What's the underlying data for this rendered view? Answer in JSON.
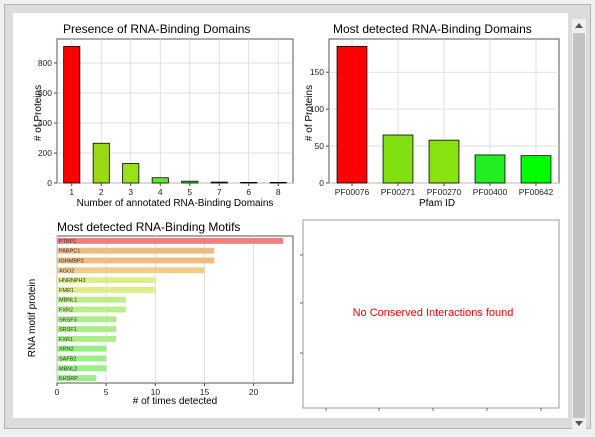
{
  "chart_data": [
    {
      "type": "bar",
      "title": "Presence of RNA-Binding Domains",
      "xlabel": "Number of annotated RNA-Binding Domains",
      "ylabel": "# of Proteins",
      "categories": [
        "1",
        "2",
        "3",
        "4",
        "5",
        "7",
        "6",
        "8"
      ],
      "values": [
        910,
        265,
        130,
        35,
        12,
        6,
        4,
        4
      ],
      "colors": [
        "#ff0000",
        "#99d911",
        "#9be11a",
        "#66e62a",
        "#33ee33",
        "#22ee22",
        "#00ff00",
        "#00ff00"
      ],
      "ylim": [
        0,
        960
      ],
      "yticks": [
        0,
        200,
        400,
        600,
        800
      ],
      "grid": true
    },
    {
      "type": "bar",
      "title": "Most detected RNA-Binding Domains",
      "xlabel": "Pfam ID",
      "ylabel": "# of Proteins",
      "categories": [
        "PF00076",
        "PF00271",
        "PF00270",
        "PF00400",
        "PF00642"
      ],
      "values": [
        185,
        65,
        58,
        38,
        37
      ],
      "colors": [
        "#ff0000",
        "#80e010",
        "#88e212",
        "#22ee22",
        "#00ff00"
      ],
      "ylim": [
        0,
        195
      ],
      "yticks": [
        0,
        50,
        100,
        150
      ],
      "grid": true
    },
    {
      "type": "bar",
      "orientation": "horizontal",
      "title": "Most detected RNA-Binding Motifs",
      "xlabel": "# of times detected",
      "ylabel": "RNA motif protein",
      "categories": [
        "PTBP1",
        "PABPC1",
        "IGHMBP2",
        "AGO2",
        "HNRNPH3",
        "FMR1",
        "MBNL1",
        "FXR2",
        "SRSF3",
        "SRSF1",
        "FXR1",
        "XRN2",
        "SAFB2",
        "MBNL2",
        "KHSRP"
      ],
      "values": [
        23,
        16,
        16,
        15,
        10,
        10,
        7,
        7,
        6,
        6,
        6,
        5,
        5,
        5,
        4
      ],
      "colors": [
        "#f08080",
        "#eebb80",
        "#eebb80",
        "#f0cc88",
        "#ddee88",
        "#ddee88",
        "#bbee88",
        "#bbee88",
        "#aaee88",
        "#aaee88",
        "#aaee88",
        "#99ee88",
        "#99ee88",
        "#99ee88",
        "#99ee88"
      ],
      "xlim": [
        0,
        24
      ],
      "xticks": [
        0,
        5,
        10,
        15,
        20
      ],
      "grid": true
    }
  ],
  "empty_panel": {
    "message": "No Conserved Interactions found",
    "message_color": "#ff0000"
  }
}
